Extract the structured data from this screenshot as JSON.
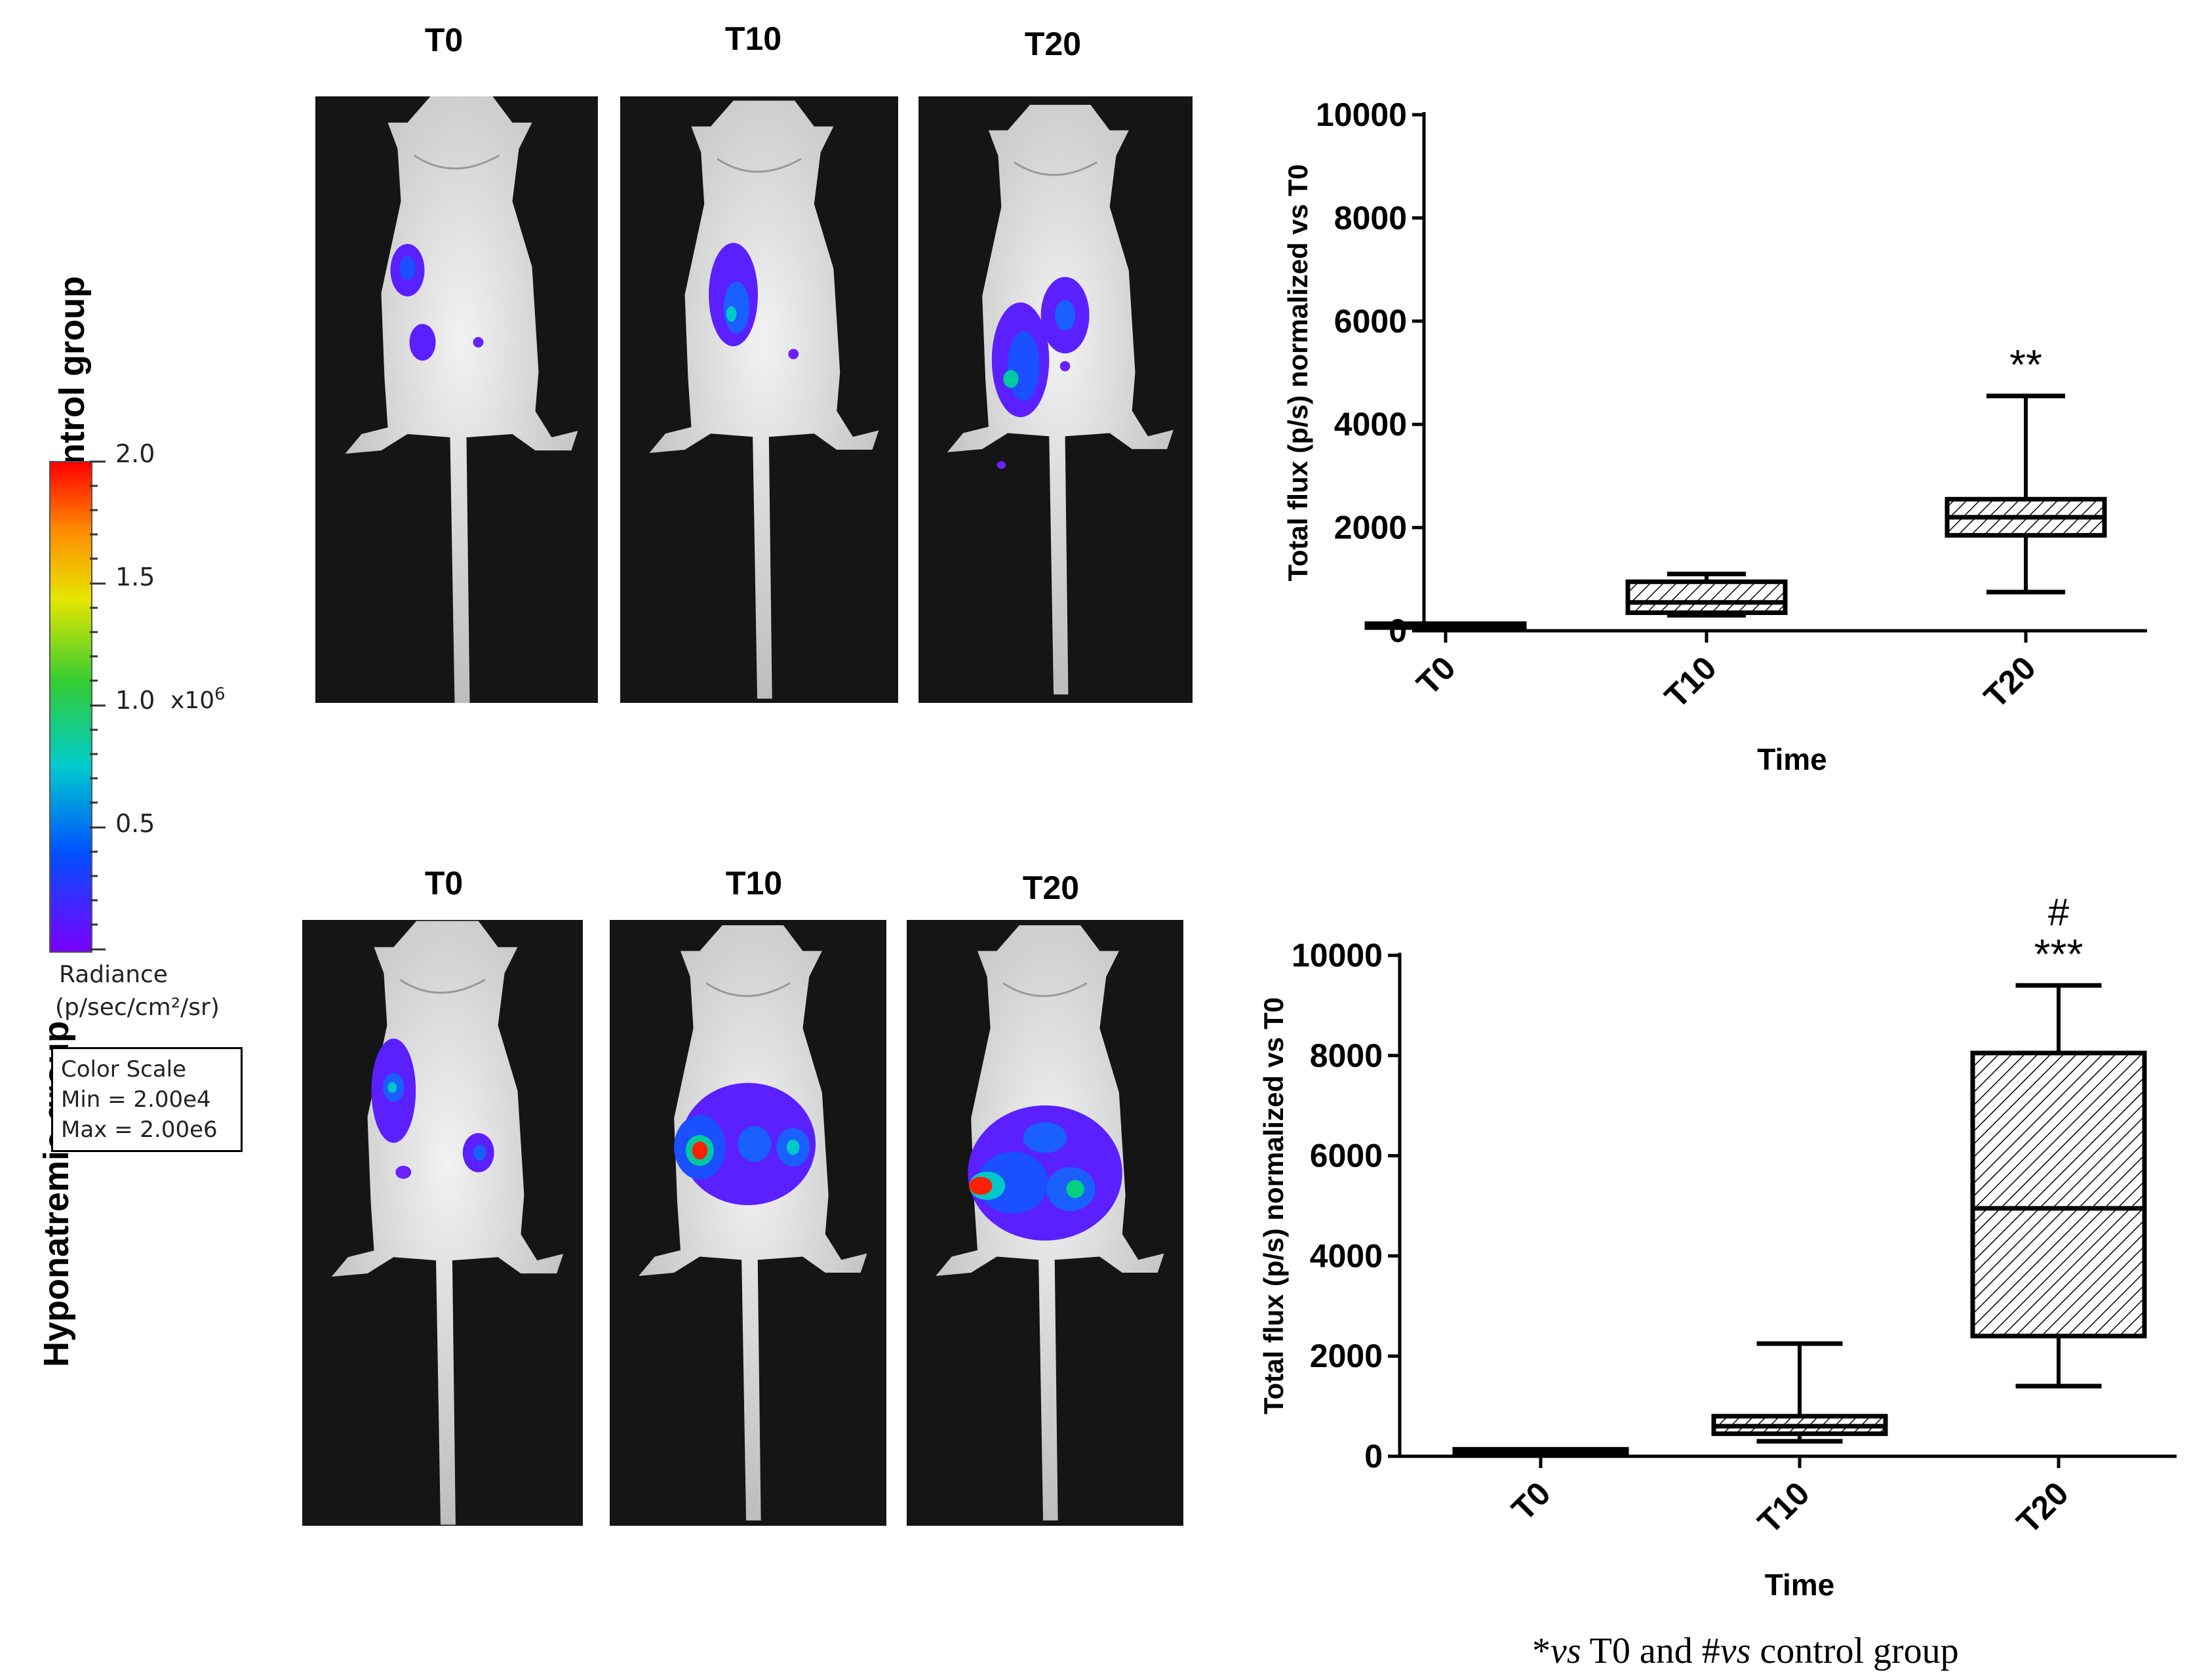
{
  "groups": [
    {
      "row_label": "Control group",
      "columns": [
        "T0",
        "T10",
        "T20"
      ]
    },
    {
      "row_label": "Hyponatremic group",
      "columns": [
        "T0",
        "T10",
        "T20"
      ]
    }
  ],
  "colorscale": {
    "ticks": [
      "2.0",
      "1.5",
      "1.0",
      "0.5"
    ],
    "multiplier": "x10",
    "exponent": "6",
    "title_line1": "Radiance",
    "title_line2": "(p/sec/cm²/sr)",
    "box_line1": "Color Scale",
    "box_line2": "Min = 2.00e4",
    "box_line3": "Max = 2.00e6",
    "gradient": [
      "#ff0000",
      "#ff8c00",
      "#e6e600",
      "#33cc33",
      "#00cccc",
      "#0050ff",
      "#7a00ff"
    ]
  },
  "chart_data": [
    {
      "type": "box",
      "ylabel": "Total flux (p/s) normalized vs T0",
      "xlabel": "Time",
      "ylim": [
        0,
        10000
      ],
      "yticks": [
        0,
        2000,
        4000,
        6000,
        8000,
        10000
      ],
      "categories": [
        "T0",
        "T10",
        "T20"
      ],
      "boxes": [
        {
          "min": 100,
          "q1": 100,
          "median": 100,
          "q3": 100,
          "max": 100,
          "annotation": ""
        },
        {
          "min": 300,
          "q1": 350,
          "median": 550,
          "q3": 950,
          "max": 1100,
          "annotation": ""
        },
        {
          "min": 750,
          "q1": 1850,
          "median": 2200,
          "q3": 2550,
          "max": 4550,
          "annotation": "**"
        }
      ]
    },
    {
      "type": "box",
      "ylabel": "Total flux (p/s) normalized vs T0",
      "xlabel": "Time",
      "ylim": [
        0,
        10000
      ],
      "yticks": [
        0,
        2000,
        4000,
        6000,
        8000,
        10000
      ],
      "categories": [
        "T0",
        "T10",
        "T20"
      ],
      "boxes": [
        {
          "min": 100,
          "q1": 100,
          "median": 100,
          "q3": 100,
          "max": 100,
          "annotation": ""
        },
        {
          "min": 300,
          "q1": 450,
          "median": 600,
          "q3": 800,
          "max": 2250,
          "annotation": ""
        },
        {
          "min": 1400,
          "q1": 2400,
          "median": 4950,
          "q3": 8050,
          "max": 9400,
          "annotation": "***",
          "annotation2": "#"
        }
      ]
    }
  ],
  "footnote": {
    "p1": "*",
    "p2": "vs",
    "p3": " T0 and #",
    "p4": "vs",
    "p5": " control group"
  }
}
